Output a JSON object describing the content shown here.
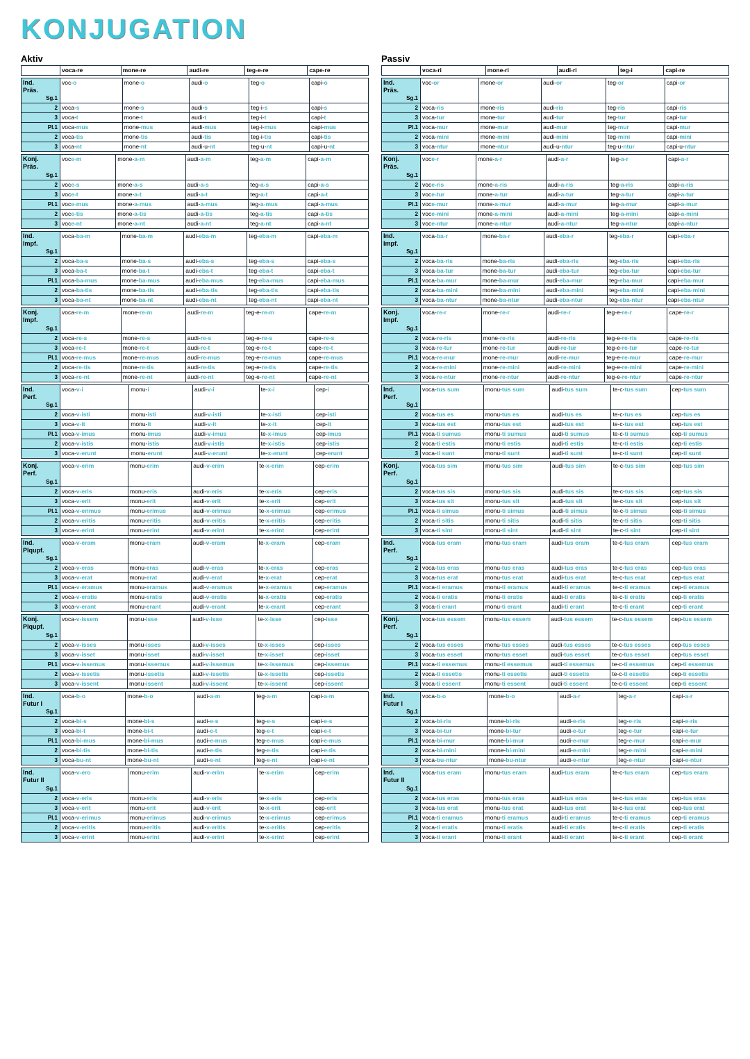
{
  "title": "KONJUGATION",
  "voices": [
    {
      "name": "Aktiv",
      "headers": [
        "voca-re",
        "mone-re",
        "audi-re",
        "teg-e-re",
        "cape-re"
      ]
    },
    {
      "name": "Passiv",
      "headers": [
        "voca-ri",
        "mone-ri",
        "audi-ri",
        "teg-i",
        "capi-re"
      ]
    }
  ],
  "persons": [
    "Sg.1",
    "2",
    "3",
    "Pl.1",
    "2",
    "3"
  ],
  "colors": {
    "accent": "#3fc6d9",
    "tense_bg": "#a7e3ea",
    "border": "#1a2a3a"
  },
  "aktiv": [
    {
      "tense": "Ind. Präs.",
      "rows": [
        [
          "voc-|o",
          "mone-|o",
          "audi-|o",
          "teg-|o",
          "capi-|o"
        ],
        [
          "voca-|s",
          "mone-|s",
          "audi-|s",
          "teg-i-|s",
          "capi-|s"
        ],
        [
          "voca-|t",
          "mone-|t",
          "audi-|t",
          "teg-i-|t",
          "capi-|t"
        ],
        [
          "voca-|mus",
          "mone-|mus",
          "audi-|mus",
          "teg-i-|mus",
          "capi-|mus"
        ],
        [
          "voca-|tis",
          "mone-|tis",
          "audi-|tis",
          "teg-i-|tis",
          "capi-|tis"
        ],
        [
          "voca-|nt",
          "mone-|nt",
          "audi-u-|nt",
          "teg-u-|nt",
          "capi-u-|nt"
        ]
      ]
    },
    {
      "tense": "Konj. Präs.",
      "rows": [
        [
          "voc|e-m",
          "mone-|a-m",
          "audi-|a-m",
          "teg-|a-m",
          "capi-|a-m"
        ],
        [
          "voc|e-s",
          "mone-|a-s",
          "audi-|a-s",
          "teg-|a-s",
          "capi-|a-s"
        ],
        [
          "voc|e-t",
          "mone-|a-t",
          "audi-|a-t",
          "teg-|a-t",
          "capi-|a-t"
        ],
        [
          "voc|e-mus",
          "mone-|a-mus",
          "audi-|a-mus",
          "teg-|a-mus",
          "capi-|a-mus"
        ],
        [
          "voc|e-tis",
          "mone-|a-tis",
          "audi-|a-tis",
          "teg-|a-tis",
          "capi-|a-tis"
        ],
        [
          "voc|e-nt",
          "mone-|a-nt",
          "audi-|a-nt",
          "teg-|a-nt",
          "capi-|a-nt"
        ]
      ]
    },
    {
      "tense": "Ind. Impf.",
      "rows": [
        [
          "voca-|ba-m",
          "mone-|ba-m",
          "audi-|eba-m",
          "teg-|eba-m",
          "capi-|eba-m"
        ],
        [
          "voca-|ba-s",
          "mone-|ba-s",
          "audi-|eba-s",
          "teg-|eba-s",
          "capi-|eba-s"
        ],
        [
          "voca-|ba-t",
          "mone-|ba-t",
          "audi-|eba-t",
          "teg-|eba-t",
          "capi-|eba-t"
        ],
        [
          "voca-|ba-mus",
          "mone-|ba-mus",
          "audi-|eba-mus",
          "teg-|eba-mus",
          "capi-|eba-mus"
        ],
        [
          "voca-|ba-tis",
          "mone-|ba-tis",
          "audi-|eba-tis",
          "teg-|eba-tis",
          "capi-|eba-tis"
        ],
        [
          "voca-|ba-nt",
          "mone-|ba-nt",
          "audi-|eba-nt",
          "teg-|eba-nt",
          "capi-|eba-nt"
        ]
      ]
    },
    {
      "tense": "Konj. Impf.",
      "rows": [
        [
          "voca-|re-m",
          "mone-|re-m",
          "audi-|re-m",
          "teg-e-|re-m",
          "cape-|re-m"
        ],
        [
          "voca-|re-s",
          "mone-|re-s",
          "audi-|re-s",
          "teg-e-|re-s",
          "cape-|re-s"
        ],
        [
          "voca-|re-t",
          "mone-|re-t",
          "audi-|re-t",
          "teg-e-|re-t",
          "cape-|re-t"
        ],
        [
          "voca-|re-mus",
          "mone-|re-mus",
          "audi-|re-mus",
          "teg-e-|re-mus",
          "cape-|re-mus"
        ],
        [
          "voca-|re-tis",
          "mone-|re-tis",
          "audi-|re-tis",
          "teg-e-|re-tis",
          "cape-|re-tis"
        ],
        [
          "voca-|re-nt",
          "mone-|re-nt",
          "audi-|re-nt",
          "teg-e-|re-nt",
          "cape-|re-nt"
        ]
      ]
    },
    {
      "tense": "Ind. Perf.",
      "rows": [
        [
          "voca-|v-i",
          "monu-|i",
          "audi-|v-i",
          "te-|x-i",
          "cep-|i"
        ],
        [
          "voca-|v-isti",
          "monu-|isti",
          "audi-|v-isti",
          "te-|x-isti",
          "cep-|isti"
        ],
        [
          "voca-|v-it",
          "monu-|it",
          "audi-|v-it",
          "te-|x-it",
          "cep-|it"
        ],
        [
          "voca-|v-imus",
          "monu-|imus",
          "audi-|v-imus",
          "te-|x-imus",
          "cep-|imus"
        ],
        [
          "voca-|v-istis",
          "monu-|istis",
          "audi-|v-istis",
          "te-|x-istis",
          "cep-|istis"
        ],
        [
          "voca-|v-erunt",
          "monu-|erunt",
          "audi-|v-erunt",
          "te-|x-erunt",
          "cep-|erunt"
        ]
      ]
    },
    {
      "tense": "Konj. Perf.",
      "rows": [
        [
          "voca-|v-erim",
          "monu-|erim",
          "audi-|v-erim",
          "te-|x-erim",
          "cep-|erim"
        ],
        [
          "voca-|v-eris",
          "monu-|eris",
          "audi-|v-eris",
          "te-|x-eris",
          "cep-|eris"
        ],
        [
          "voca-|v-erit",
          "monu-|erit",
          "audi-|v-erit",
          "te-|x-erit",
          "cep-|erit"
        ],
        [
          "voca-|v-erimus",
          "monu-|erimus",
          "audi-|v-erimus",
          "te-|x-erimus",
          "cep-|erimus"
        ],
        [
          "voca-|v-eritis",
          "monu-|eritis",
          "audi-|v-eritis",
          "te-|x-eritis",
          "cep-|eritis"
        ],
        [
          "voca-|v-erint",
          "monu-|erint",
          "audi-|v-erint",
          "te-|x-erint",
          "cep-|erint"
        ]
      ]
    },
    {
      "tense": "Ind. Plqupf.",
      "rows": [
        [
          "voca-|v-eram",
          "monu-|eram",
          "audi-|v-eram",
          "te-|x-eram",
          "cep-|eram"
        ],
        [
          "voca-|v-eras",
          "monu-|eras",
          "audi-|v-eras",
          "te-|x-eras",
          "cep-|eras"
        ],
        [
          "voca-|v-erat",
          "monu-|erat",
          "audi-|v-erat",
          "te-|x-erat",
          "cep-|erat"
        ],
        [
          "voca-|v-eramus",
          "monu-|eramus",
          "audi-|v-eramus",
          "te-|x-eramus",
          "cep-|eramus"
        ],
        [
          "voca-|v-eratis",
          "monu-|eratis",
          "audi-|v-eratis",
          "te-|x-eratis",
          "cep-|eratis"
        ],
        [
          "voca-|v-erant",
          "monu-|erant",
          "audi-|v-erant",
          "te-|x-erant",
          "cep-|erant"
        ]
      ]
    },
    {
      "tense": "Konj. Plqupf.",
      "rows": [
        [
          "voca-|v-issem",
          "monu-|isse",
          "audi-|v-isse",
          "te-|x-isse",
          "cep-|isse"
        ],
        [
          "voca-|v-isses",
          "monu-|isses",
          "audi-|v-isses",
          "te-|x-isses",
          "cep-|isses"
        ],
        [
          "voca-|v-isset",
          "monu-|isset",
          "audi-|v-isset",
          "te-|x-isset",
          "cep-|isset"
        ],
        [
          "voca-|v-issemus",
          "monu-|issemus",
          "audi-|v-issemus",
          "te-|x-issemus",
          "cep-|issemus"
        ],
        [
          "voca-|v-issetis",
          "monu-|issetis",
          "audi-|v-issetis",
          "te-|x-issetis",
          "cep-|issetis"
        ],
        [
          "voca-|v-issent",
          "monu-|issent",
          "audi-|v-issent",
          "te-|x-issent",
          "cep-|issent"
        ]
      ]
    },
    {
      "tense": "Ind. Futur I",
      "rows": [
        [
          "voca-|b-o",
          "mone-|b-o",
          "audi-|a-m",
          "teg-|a-m",
          "capi-|a-m"
        ],
        [
          "voca-|bi-s",
          "mone-|bi-s",
          "audi-|e-s",
          "teg-|e-s",
          "capi-|e-s"
        ],
        [
          "voca-|bi-t",
          "mone-|bi-t",
          "audi-|e-t",
          "teg-|e-t",
          "capi-|e-t"
        ],
        [
          "voca-|bi-mus",
          "mone-|bi-mus",
          "audi-|e-mus",
          "teg-|e-mus",
          "capi-|e-mus"
        ],
        [
          "voca-|bi-tis",
          "mone-|bi-tis",
          "audi-|e-tis",
          "teg-|e-tis",
          "capi-|e-tis"
        ],
        [
          "voca-|bu-nt",
          "mone-|bu-nt",
          "audi-|e-nt",
          "teg-|e-nt",
          "capi-|e-nt"
        ]
      ]
    },
    {
      "tense": "Ind. Futur II",
      "rows": [
        [
          "voca-|v-ero",
          "monu-|erim",
          "audi-|v-erim",
          "te-|x-erim",
          "cep-|erim"
        ],
        [
          "voca-|v-eris",
          "monu-|eris",
          "audi-|v-eris",
          "te-|x-eris",
          "cep-|eris"
        ],
        [
          "voca-|v-erit",
          "monu-|erit",
          "audi-|v-erit",
          "te-|x-erit",
          "cep-|erit"
        ],
        [
          "voca-|v-erimus",
          "monu-|erimus",
          "audi-|v-erimus",
          "te-|x-erimus",
          "cep-|erimus"
        ],
        [
          "voca-|v-eritis",
          "monu-|eritis",
          "audi-|v-eritis",
          "te-|x-eritis",
          "cep-|eritis"
        ],
        [
          "voca-|v-erint",
          "monu-|erint",
          "audi-|v-erint",
          "te-|x-erint",
          "cep-|erint"
        ]
      ]
    }
  ],
  "passiv": [
    {
      "tense": "Ind. Präs.",
      "rows": [
        [
          "voc-|or",
          "mone-|or",
          "audi-|or",
          "teg-|or",
          "capi-|or"
        ],
        [
          "voca-|ris",
          "mone-|ris",
          "audi-|ris",
          "teg-|ris",
          "capi-|ris"
        ],
        [
          "voca-|tur",
          "mone-|tur",
          "audi-|tur",
          "teg-|tur",
          "capi-|tur"
        ],
        [
          "voca-|mur",
          "mone-|mur",
          "audi-|mur",
          "teg-|mur",
          "capi-|mur"
        ],
        [
          "voca-|mini",
          "mone-|mini",
          "audi-|mini",
          "teg-|mini",
          "capi-|mini"
        ],
        [
          "voca-|ntur",
          "mone-|ntur",
          "audi-u-|ntur",
          "teg-u-|ntur",
          "capi-u-|ntur"
        ]
      ]
    },
    {
      "tense": "Konj. Präs.",
      "rows": [
        [
          "voc|e-r",
          "mone-|a-r",
          "audi-|a-r",
          "teg-|a-r",
          "capi-|a-r"
        ],
        [
          "voc|e-ris",
          "mone-|a-ris",
          "audi-|a-ris",
          "teg-|a-ris",
          "capi-|a-ris"
        ],
        [
          "voc|e-tur",
          "mone-|a-tur",
          "audi-|a-tur",
          "teg-|a-tur",
          "capi-|a-tur"
        ],
        [
          "voc|e-mur",
          "mone-|a-mur",
          "audi-|a-mur",
          "teg-|a-mur",
          "capi-|a-mur"
        ],
        [
          "voc|e-mini",
          "mone-|a-mini",
          "audi-|a-mini",
          "teg-|a-mini",
          "capi-|a-mini"
        ],
        [
          "voc|e-ntur",
          "mone-|a-ntur",
          "audi-|a-ntur",
          "teg-|a-ntur",
          "capi-|a-ntur"
        ]
      ]
    },
    {
      "tense": "Ind. Impf.",
      "rows": [
        [
          "voca-|ba-r",
          "mone-|ba-r",
          "audi-|eba-r",
          "teg-|eba-r",
          "capi-|eba-r"
        ],
        [
          "voca-|ba-ris",
          "mone-|ba-ris",
          "audi-|eba-ris",
          "teg-|eba-ris",
          "capi-|eba-ris"
        ],
        [
          "voca-|ba-tur",
          "mone-|ba-tur",
          "audi-|eba-tur",
          "teg-|eba-tur",
          "capi-|eba-tur"
        ],
        [
          "voca-|ba-mur",
          "mone-|ba-mur",
          "audi-|eba-mur",
          "teg-|eba-mur",
          "capi-|eba-mur"
        ],
        [
          "voca-|ba-mini",
          "mone-|ba-mini",
          "audi-|eba-mini",
          "teg-|eba-mini",
          "capi-|eba-mini"
        ],
        [
          "voca-|ba-ntur",
          "mone-|ba-ntur",
          "audi-|eba-ntur",
          "teg-|eba-ntur",
          "capi-|eba-ntur"
        ]
      ]
    },
    {
      "tense": "Konj. Impf.",
      "rows": [
        [
          "voca-|re-r",
          "mone-|re-r",
          "audi-|re-r",
          "teg-e-|re-r",
          "cape-|re-r"
        ],
        [
          "voca-|re-ris",
          "mone-|re-ris",
          "audi-|re-ris",
          "teg-e-|re-ris",
          "cape-|re-ris"
        ],
        [
          "voca-|re-tur",
          "mone-|re-tur",
          "audi-|re-tur",
          "teg-e-|re-tur",
          "cape-|re-tur"
        ],
        [
          "voca-|re-mur",
          "mone-|re-mur",
          "audi-|re-mur",
          "teg-e-|re-mur",
          "cape-|re-mur"
        ],
        [
          "voca-|re-mini",
          "mone-|re-mini",
          "audi-|re-mini",
          "teg-e-|re-mini",
          "cape-|re-mini"
        ],
        [
          "voca-|re-ntur",
          "mone-|re-ntur",
          "audi-|re-ntur",
          "teg-e-|re-ntur",
          "cape-|re-ntur"
        ]
      ]
    },
    {
      "tense": "Ind. Perf.",
      "rows": [
        [
          "voca-|tus sum",
          "monu-|tus sum",
          "audi-|tus sum",
          "te-c-|tus sum",
          "cep-|tus sum"
        ],
        [
          "voca-|tus es",
          "monu-|tus es",
          "audi-|tus es",
          "te-c-|tus es",
          "cep-|tus es"
        ],
        [
          "voca-|tus est",
          "monu-|tus est",
          "audi-|tus est",
          "te-c-|tus est",
          "cep-|tus est"
        ],
        [
          "voca-|ti sumus",
          "monu-|ti sumus",
          "audi-|ti sumus",
          "te-c-|ti sumus",
          "cep-|ti sumus"
        ],
        [
          "voca-|ti estis",
          "monu-|ti estis",
          "audi-|ti estis",
          "te-c-|ti estis",
          "cep-|ti estis"
        ],
        [
          "voca-|ti sunt",
          "monu-|ti sunt",
          "audi-|ti sunt",
          "te-c-|ti sunt",
          "cep-|ti sunt"
        ]
      ]
    },
    {
      "tense": "Konj. Perf.",
      "rows": [
        [
          "voca-|tus sim",
          "monu-|tus sim",
          "audi-|tus sim",
          "te-c-|tus sim",
          "cep-|tus sim"
        ],
        [
          "voca-|tus sis",
          "monu-|tus sis",
          "audi-|tus sis",
          "te-c-|tus sis",
          "cep-|tus sis"
        ],
        [
          "voca-|tus sit",
          "monu-|tus sit",
          "audi-|tus sit",
          "te-c-|tus sit",
          "cep-|tus sit"
        ],
        [
          "voca-|ti simus",
          "monu-|ti simus",
          "audi-|ti simus",
          "te-c-|ti simus",
          "cep-|ti simus"
        ],
        [
          "voca-|ti sitis",
          "monu-|ti sitis",
          "audi-|ti sitis",
          "te-c-|ti sitis",
          "cep-|ti sitis"
        ],
        [
          "voca-|ti sint",
          "monu-|ti sint",
          "audi-|ti sint",
          "te-c-|ti sint",
          "cep-|ti sint"
        ]
      ]
    },
    {
      "tense": "Ind. Perf.",
      "rows": [
        [
          "voca-|tus eram",
          "monu-|tus eram",
          "audi-|tus eram",
          "te-c-|tus eram",
          "cep-|tus eram"
        ],
        [
          "voca-|tus eras",
          "monu-|tus eras",
          "audi-|tus eras",
          "te-c-|tus eras",
          "cep-|tus eras"
        ],
        [
          "voca-|tus erat",
          "monu-|tus erat",
          "audi-|tus erat",
          "te-c-|tus erat",
          "cep-|tus erat"
        ],
        [
          "voca-|ti eramus",
          "monu-|ti eramus",
          "audi-|ti eramus",
          "te-c-|ti eramus",
          "cep-|ti eramus"
        ],
        [
          "voca-|ti eratis",
          "monu-|ti eratis",
          "audi-|ti eratis",
          "te-c-|ti eratis",
          "cep-|ti eratis"
        ],
        [
          "voca-|ti erant",
          "monu-|ti erant",
          "audi-|ti erant",
          "te-c-|ti erant",
          "cep-|ti erant"
        ]
      ]
    },
    {
      "tense": "Konj. Perf.",
      "rows": [
        [
          "voca-|tus essem",
          "monu-|tus essem",
          "audi-|tus essem",
          "te-c-|tus essem",
          "cep-|tus essem"
        ],
        [
          "voca-|tus esses",
          "monu-|tus esses",
          "audi-|tus esses",
          "te-c-|tus esses",
          "cep-|tus esses"
        ],
        [
          "voca-|tus esset",
          "monu-|tus esset",
          "audi-|tus esset",
          "te-c-|tus esset",
          "cep-|tus esset"
        ],
        [
          "voca-|ti essemus",
          "monu-|ti essemus",
          "audi-|ti essemus",
          "te-c-|ti essemus",
          "cep-|ti essemus"
        ],
        [
          "voca-|ti essetis",
          "monu-|ti essetis",
          "audi-|ti essetis",
          "te-c-|ti essetis",
          "cep-|ti essetis"
        ],
        [
          "voca-|ti essent",
          "monu-|ti essent",
          "audi-|ti essent",
          "te-c-|ti essent",
          "cep-|ti essent"
        ]
      ]
    },
    {
      "tense": "Ind. Futur I",
      "rows": [
        [
          "voca-|b-o",
          "mone-|b-o",
          "audi-|a-r",
          "teg-|a-r",
          "capi-|a-r"
        ],
        [
          "voca-|bi-ris",
          "mone-|bi-ris",
          "audi-|e-ris",
          "teg-|e-ris",
          "capi-|e-ris"
        ],
        [
          "voca-|bi-tur",
          "mone-|bi-tur",
          "audi-|e-tur",
          "teg-|e-tur",
          "capi-|e-tur"
        ],
        [
          "voca-|bi-mur",
          "mone-|bi-mur",
          "audi-|e-mur",
          "teg-|e-mur",
          "capi-|e-mur"
        ],
        [
          "voca-|bi-mini",
          "mone-|bi-mini",
          "audi-|e-mini",
          "teg-|e-mini",
          "capi-|e-mini"
        ],
        [
          "voca-|bu-ntur",
          "mone-|bu-ntur",
          "audi-|e-ntur",
          "teg-|e-ntur",
          "capi-|e-ntur"
        ]
      ]
    },
    {
      "tense": "Ind. Futur II",
      "rows": [
        [
          "voca-|tus eram",
          "monu-|tus eram",
          "audi-|tus eram",
          "te-c-|tus eram",
          "cep-|tus eram"
        ],
        [
          "voca-|tus eras",
          "monu-|tus eras",
          "audi-|tus eras",
          "te-c-|tus eras",
          "cep-|tus eras"
        ],
        [
          "voca-|tus erat",
          "monu-|tus erat",
          "audi-|tus erat",
          "te-c-|tus erat",
          "cep-|tus erat"
        ],
        [
          "voca-|ti eramus",
          "monu-|ti eramus",
          "audi-|ti eramus",
          "te-c-|ti eramus",
          "cep-|ti eramus"
        ],
        [
          "voca-|ti eratis",
          "monu-|ti eratis",
          "audi-|ti eratis",
          "te-c-|ti eratis",
          "cep-|ti eratis"
        ],
        [
          "voca-|ti erant",
          "monu-|ti erant",
          "audi-|ti erant",
          "te-c-|ti erant",
          "cep-|ti erant"
        ]
      ]
    }
  ]
}
